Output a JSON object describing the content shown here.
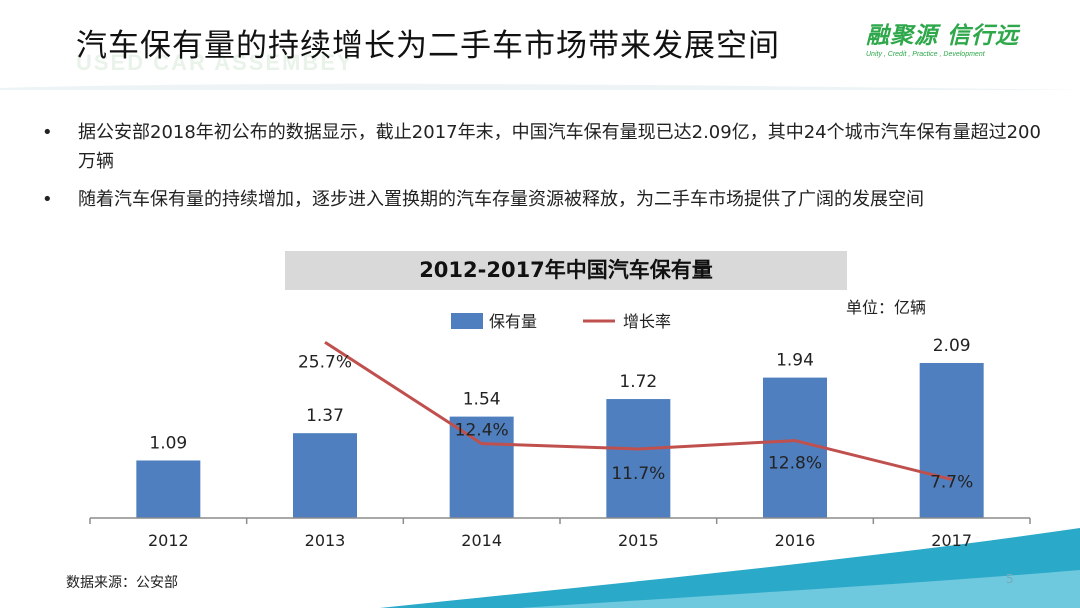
{
  "title": "汽车保有量的持续增长为二手车市场带来发展空间",
  "watermark": "USED CAR ASSEMBEY",
  "logo": {
    "main": "融聚源 信行远",
    "sub": "Unity , Credit , Practice , Development"
  },
  "bullets": [
    "据公安部2018年初公布的数据显示，截止2017年末，中国汽车保有量现已达2.09亿，其中24个城市汽车保有量超过200万辆",
    "随着汽车保有量的持续增加，逐步进入置换期的汽车存量资源被释放，为二手车市场提供了广阔的发展空间"
  ],
  "bullet_symbol": "•",
  "unit": "单位：亿辆",
  "source": "数据来源：公安部",
  "page_number": "5",
  "colors": {
    "bar": "#4f7fbf",
    "line": "#c0504d",
    "accent_green": "#2ea84b",
    "teal": "#2aa9c9"
  },
  "chart_data": {
    "type": "bar",
    "title": "2012-2017年中国汽车保有量",
    "categories": [
      "2012",
      "2013",
      "2014",
      "2015",
      "2016",
      "2017"
    ],
    "series": [
      {
        "name": "保有量",
        "type": "bar",
        "values": [
          1.09,
          1.37,
          1.54,
          1.72,
          1.94,
          2.09
        ],
        "labels": [
          "1.09",
          "1.37",
          "1.54",
          "1.72",
          "1.94",
          "2.09"
        ]
      },
      {
        "name": "增长率",
        "type": "line",
        "values": [
          null,
          25.7,
          12.4,
          11.7,
          12.8,
          7.7
        ],
        "labels": [
          "",
          "25.7%",
          "12.4%",
          "11.7%",
          "12.8%",
          "7.7%"
        ]
      }
    ],
    "ylim": [
      0,
      2.5
    ],
    "y2lim": [
      0,
      30
    ],
    "grid": false,
    "legend": "top-left"
  }
}
